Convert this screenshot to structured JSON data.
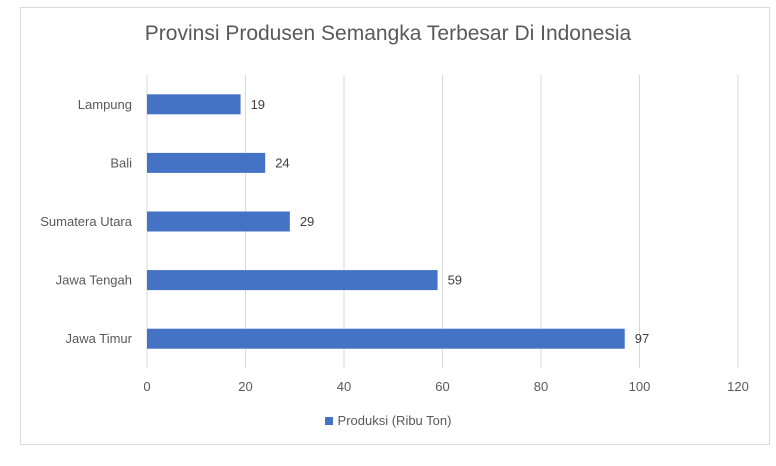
{
  "chart_data": {
    "type": "bar",
    "orientation": "horizontal",
    "title": "Provinsi Produsen Semangka Terbesar Di Indonesia",
    "categories": [
      "Lampung",
      "Bali",
      "Sumatera Utara",
      "Jawa Tengah",
      "Jawa Timur"
    ],
    "series": [
      {
        "name": "Produksi (Ribu Ton)",
        "values": [
          19,
          24,
          29,
          59,
          97
        ],
        "color": "#4472c4"
      }
    ],
    "xlim": [
      0,
      120
    ],
    "xticks": [
      0,
      20,
      40,
      60,
      80,
      100,
      120
    ],
    "grid": true,
    "legend_position": "bottom"
  }
}
